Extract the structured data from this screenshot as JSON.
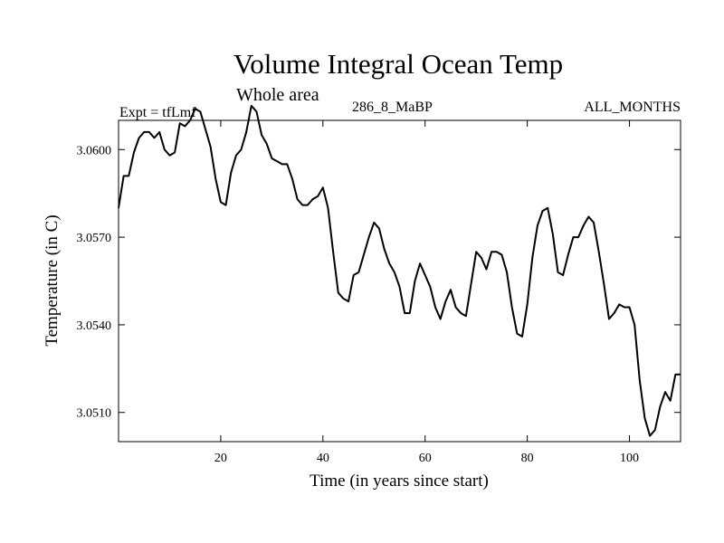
{
  "chart_data": {
    "type": "line",
    "title": "Volume Integral Ocean Temp",
    "subtitle": "Whole area",
    "experiment_label": "Expt = tfLmf",
    "run_label": "286_8_MaBP",
    "months_label": "ALL_MONTHS",
    "xlabel": "Time (in years since start)",
    "ylabel": "Temperature (in C)",
    "xlim": [
      0,
      110
    ],
    "ylim": [
      3.05,
      3.061
    ],
    "x_ticks": [
      20,
      40,
      60,
      80,
      100
    ],
    "x_tick_labels": [
      "20",
      "40",
      "60",
      "80",
      "100"
    ],
    "y_ticks": [
      3.051,
      3.054,
      3.057,
      3.06
    ],
    "y_tick_labels": [
      "3.0510",
      "3.0540",
      "3.0570",
      "3.0600"
    ],
    "grid": false,
    "series": [
      {
        "name": "Volume Integral Ocean Temp",
        "x": [
          0,
          1,
          2,
          3,
          4,
          5,
          6,
          7,
          8,
          9,
          10,
          11,
          12,
          13,
          14,
          15,
          16,
          17,
          18,
          19,
          20,
          21,
          22,
          23,
          24,
          25,
          26,
          27,
          28,
          29,
          30,
          31,
          32,
          33,
          34,
          35,
          36,
          37,
          38,
          39,
          40,
          41,
          42,
          43,
          44,
          45,
          46,
          47,
          48,
          49,
          50,
          51,
          52,
          53,
          54,
          55,
          56,
          57,
          58,
          59,
          60,
          61,
          62,
          63,
          64,
          65,
          66,
          67,
          68,
          69,
          70,
          71,
          72,
          73,
          74,
          75,
          76,
          77,
          78,
          79,
          80,
          81,
          82,
          83,
          84,
          85,
          86,
          87,
          88,
          89,
          90,
          91,
          92,
          93,
          94,
          95,
          96,
          97,
          98,
          99,
          100,
          101,
          102,
          103,
          104,
          105,
          106,
          107,
          108,
          109,
          110
        ],
        "values": [
          3.058,
          3.0591,
          3.0591,
          3.0599,
          3.0604,
          3.0606,
          3.0606,
          3.0604,
          3.0606,
          3.06,
          3.0598,
          3.0599,
          3.0609,
          3.0608,
          3.061,
          3.0614,
          3.0613,
          3.0607,
          3.0601,
          3.059,
          3.0582,
          3.0581,
          3.0592,
          3.0598,
          3.06,
          3.0606,
          3.0615,
          3.0613,
          3.0605,
          3.0602,
          3.0597,
          3.0596,
          3.0595,
          3.0595,
          3.059,
          3.0583,
          3.0581,
          3.0581,
          3.0583,
          3.0584,
          3.0587,
          3.058,
          3.0565,
          3.0551,
          3.0549,
          3.0548,
          3.0557,
          3.0558,
          3.0564,
          3.057,
          3.0575,
          3.0573,
          3.0566,
          3.0561,
          3.0558,
          3.0553,
          3.0544,
          3.0544,
          3.0555,
          3.0561,
          3.0557,
          3.0553,
          3.0546,
          3.0542,
          3.0548,
          3.0552,
          3.0546,
          3.0544,
          3.0543,
          3.0554,
          3.0565,
          3.0563,
          3.0559,
          3.0565,
          3.0565,
          3.0564,
          3.0558,
          3.0546,
          3.0537,
          3.0536,
          3.0547,
          3.0563,
          3.0574,
          3.0579,
          3.058,
          3.0571,
          3.0558,
          3.0557,
          3.0564,
          3.057,
          3.057,
          3.0574,
          3.0577,
          3.0575,
          3.0565,
          3.0554,
          3.0542,
          3.0544,
          3.0547,
          3.0546,
          3.0546,
          3.054,
          3.0521,
          3.0508,
          3.0502,
          3.0504,
          3.0512,
          3.0517,
          3.0514,
          3.0523,
          3.0523
        ],
        "color": "#000000"
      }
    ]
  }
}
